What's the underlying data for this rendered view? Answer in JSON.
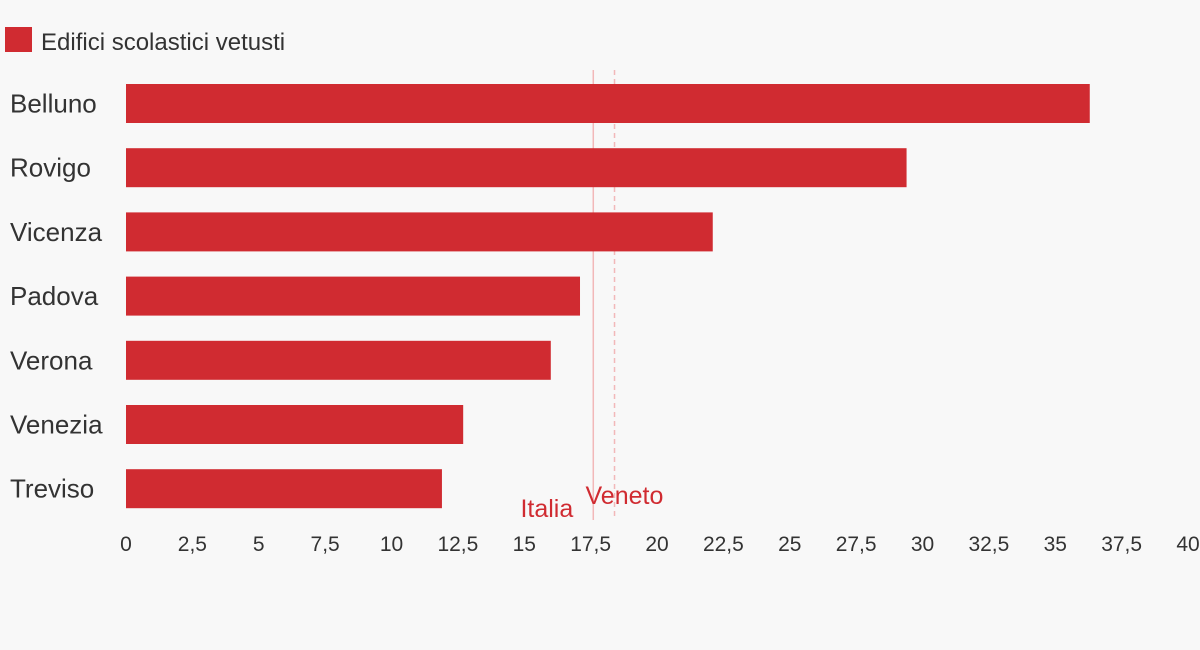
{
  "chart_data": {
    "type": "bar",
    "orientation": "horizontal",
    "title": "",
    "xlabel": "",
    "ylabel": "",
    "categories": [
      "Belluno",
      "Rovigo",
      "Vicenza",
      "Padova",
      "Verona",
      "Venezia",
      "Treviso"
    ],
    "series": [
      {
        "name": "Edifici scolastici vetusti",
        "color": "#d02b31",
        "values": [
          36.3,
          29.4,
          22.1,
          17.1,
          16.0,
          12.7,
          11.9
        ]
      }
    ],
    "reference_lines": [
      {
        "label": "Italia",
        "value": 17.6,
        "color": "#d02b31",
        "style": "solid"
      },
      {
        "label": "Veneto",
        "value": 18.4,
        "color": "#d02b31",
        "style": "dashed"
      }
    ],
    "xlim": [
      0,
      40
    ],
    "x_ticks": [
      0,
      2.5,
      5,
      7.5,
      10,
      12.5,
      15,
      17.5,
      20,
      22.5,
      25,
      27.5,
      30,
      32.5,
      35,
      37.5,
      40
    ],
    "x_tick_labels": [
      "0",
      "2,5",
      "5",
      "7,5",
      "10",
      "12,5",
      "15",
      "17,5",
      "20",
      "22,5",
      "25",
      "27,5",
      "30",
      "32,5",
      "35",
      "37,5",
      "40"
    ],
    "legend_position": "top-left",
    "grid": false
  },
  "colors": {
    "bar": "#d02b31",
    "reference_line": "#f2b8b9",
    "text": "#333333",
    "background": "#f8f8f8"
  }
}
